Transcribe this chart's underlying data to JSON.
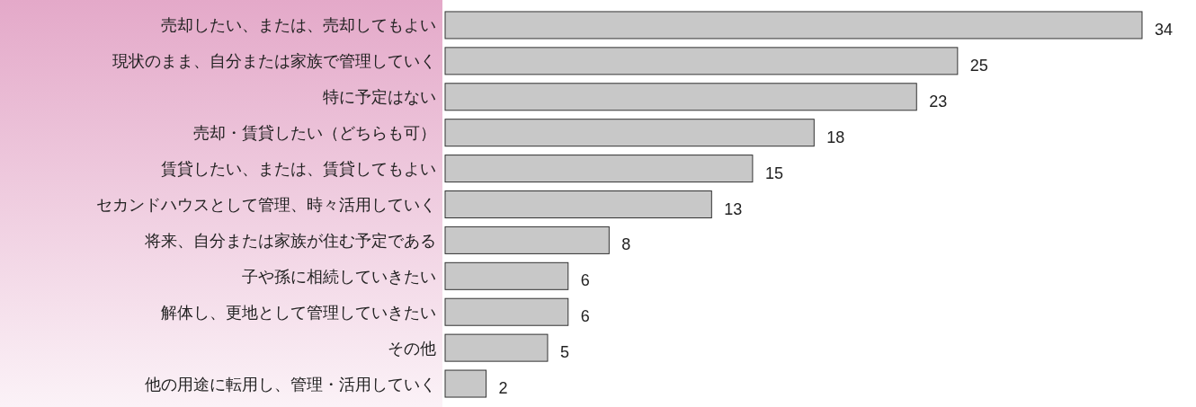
{
  "chart_data": {
    "type": "bar",
    "orientation": "horizontal",
    "data_labels": true,
    "categories": [
      "売却したい、または、売却してもよい",
      "現状のまま、自分または家族で管理していく",
      "特に予定はない",
      "売却・賃貸したい（どちらも可）",
      "賃貸したい、または、賃貸してもよい",
      "セカンドハウスとして管理、時々活用していく",
      "将来、自分または家族が住む予定である",
      "子や孫に相続していきたい",
      "解体し、更地として管理していきたい",
      "その他",
      "他の用途に転用し、管理・活用していく"
    ],
    "values": [
      34,
      25,
      23,
      18,
      15,
      13,
      8,
      6,
      6,
      5,
      2
    ],
    "color": "#c8c8c8"
  }
}
